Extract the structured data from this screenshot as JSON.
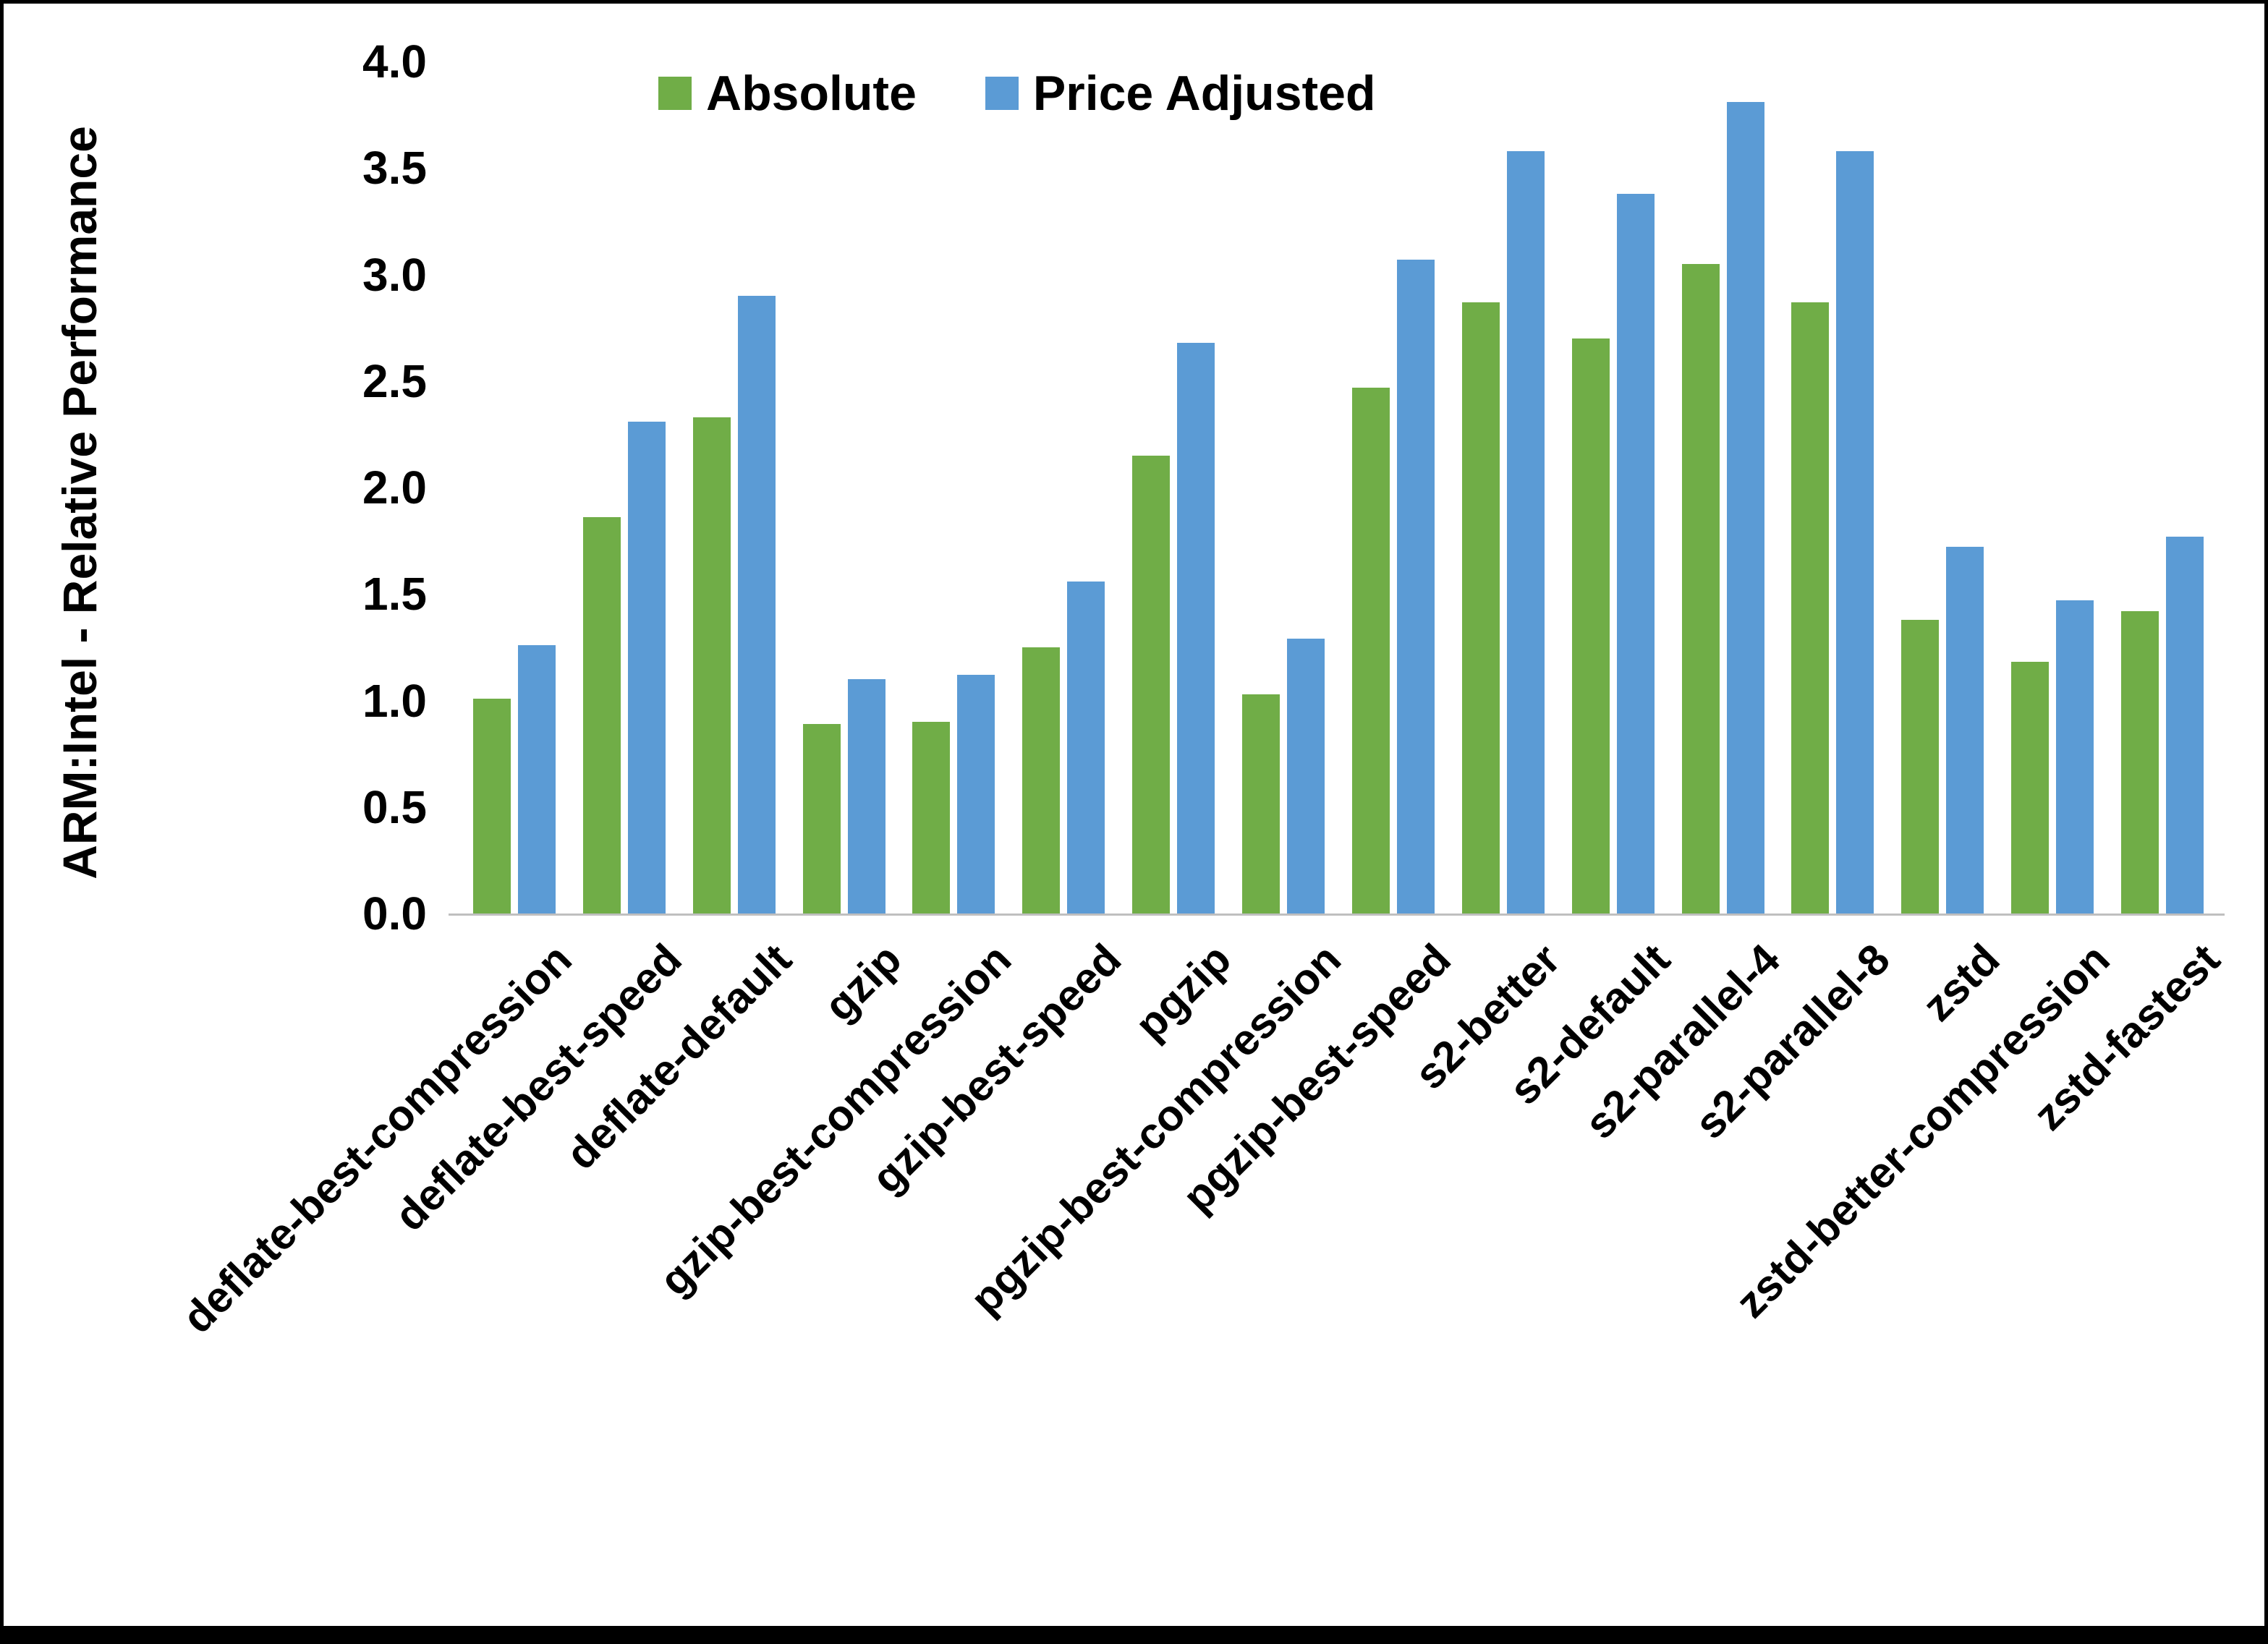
{
  "chart_data": {
    "type": "bar",
    "title": "",
    "xlabel": "",
    "ylabel": "ARM:Intel - Relative Performance",
    "ylim": [
      0.0,
      4.0
    ],
    "ytick_step": 0.5,
    "yticks": [
      "0.0",
      "0.5",
      "1.0",
      "1.5",
      "2.0",
      "2.5",
      "3.0",
      "3.5",
      "4.0"
    ],
    "grid": "off",
    "legend_position": "top-center",
    "categories": [
      "deflate-best-compression",
      "deflate-best-speed",
      "deflate-default",
      "gzip",
      "gzip-best-compression",
      "gzip-best-speed",
      "pgzip",
      "pgzip-best-compression",
      "pgzip-best-speed",
      "s2-better",
      "s2-default",
      "s2-parallel-4",
      "s2-parallel-8",
      "zstd",
      "zstd-better-compression",
      "zstd-fastest"
    ],
    "series": [
      {
        "name": "Absolute",
        "color": "#70AD47",
        "values": [
          1.01,
          1.86,
          2.33,
          0.89,
          0.9,
          1.25,
          2.15,
          1.03,
          2.47,
          2.87,
          2.7,
          3.05,
          2.87,
          1.38,
          1.18,
          1.42
        ]
      },
      {
        "name": "Price Adjusted",
        "color": "#5B9BD5",
        "values": [
          1.26,
          2.31,
          2.9,
          1.1,
          1.12,
          1.56,
          2.68,
          1.29,
          3.07,
          3.58,
          3.38,
          3.81,
          3.58,
          1.72,
          1.47,
          1.77
        ]
      }
    ]
  }
}
